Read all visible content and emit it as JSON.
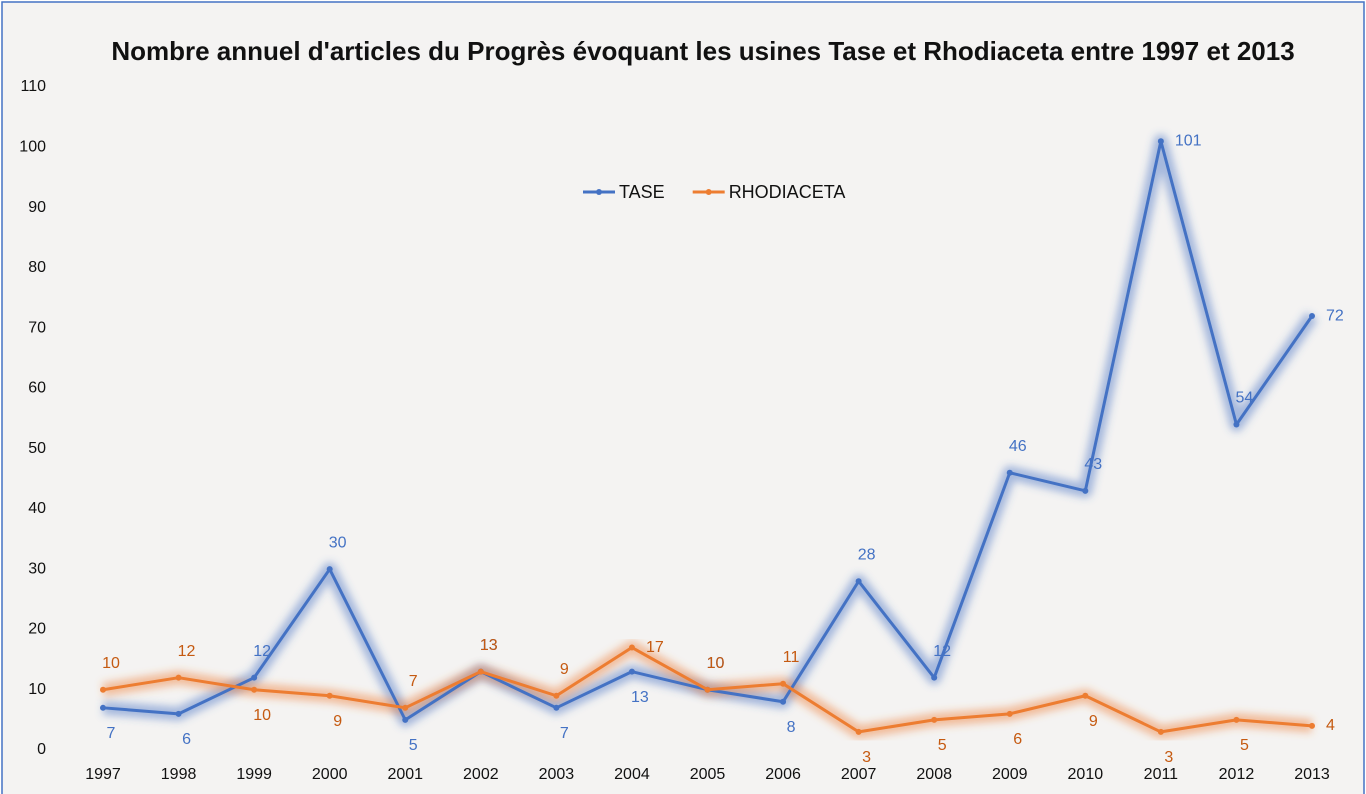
{
  "chart_data": {
    "type": "line",
    "title": "Nombre annuel d'articles du Progrès évoquant les usines Tase et Rhodiaceta entre 1997 et 2013",
    "categories": [
      "1997",
      "1998",
      "1999",
      "2000",
      "2001",
      "2002",
      "2003",
      "2004",
      "2005",
      "2006",
      "2007",
      "2008",
      "2009",
      "2010",
      "2011",
      "2012",
      "2013"
    ],
    "series": [
      {
        "name": "TASE",
        "color": "#4472c4",
        "values": [
          7,
          6,
          12,
          30,
          5,
          13,
          7,
          13,
          10,
          8,
          28,
          12,
          46,
          43,
          101,
          54,
          72
        ]
      },
      {
        "name": "RHODIACETA",
        "color": "#ed7d31",
        "values": [
          10,
          12,
          10,
          9,
          7,
          13,
          9,
          17,
          10,
          11,
          3,
          5,
          6,
          9,
          3,
          5,
          4
        ]
      }
    ],
    "ylim": [
      0,
      110
    ],
    "yticks": [
      0,
      10,
      20,
      30,
      40,
      50,
      60,
      70,
      80,
      90,
      100,
      110
    ],
    "legend": "top",
    "grid": false,
    "data_labels": true
  }
}
